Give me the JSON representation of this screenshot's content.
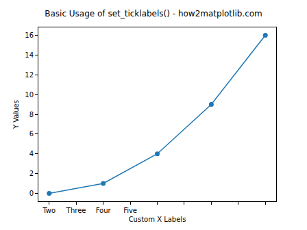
{
  "chart_data": {
    "type": "line",
    "title": "Basic Usage of set_ticklabels() - how2matplotlib.com",
    "x_label": "Custom X Labels",
    "y_label": "Y Values",
    "x": [
      0,
      1,
      2,
      3,
      4
    ],
    "values": [
      0,
      1,
      4,
      9,
      16
    ],
    "color": "#1f77b4",
    "marker": "circle",
    "line_style": "solid",
    "grid": false,
    "xlim": [
      -0.2,
      4.2
    ],
    "xticks": [
      {
        "value": 0,
        "label": "Two"
      },
      {
        "value": 0.5,
        "label": "Three"
      },
      {
        "value": 1,
        "label": "Four"
      },
      {
        "value": 1.5,
        "label": "Five"
      },
      {
        "value": 2,
        "label": null
      },
      {
        "value": 2.5,
        "label": null
      },
      {
        "value": 3,
        "label": null
      },
      {
        "value": 3.5,
        "label": null
      },
      {
        "value": 4,
        "label": null
      }
    ],
    "ylim": [
      -0.8,
      16.8
    ],
    "yticks": [
      0,
      2,
      4,
      6,
      8,
      10,
      12,
      14,
      16
    ]
  }
}
